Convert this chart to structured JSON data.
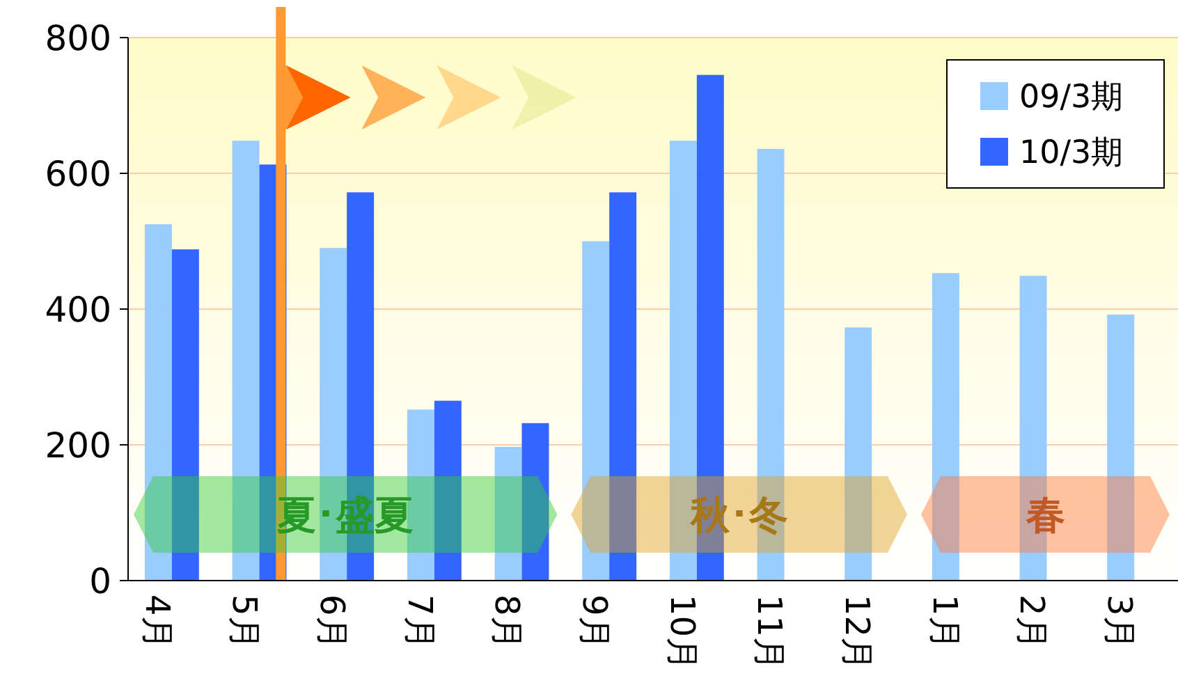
{
  "chart_data": {
    "type": "bar",
    "categories": [
      "4月",
      "5月",
      "6月",
      "7月",
      "8月",
      "9月",
      "10月",
      "11月",
      "12月",
      "1月",
      "2月",
      "3月"
    ],
    "series": [
      {
        "name": "09/3期",
        "color": "#99ccff",
        "values": [
          525,
          648,
          490,
          252,
          197,
          500,
          648,
          636,
          373,
          453,
          449,
          392
        ]
      },
      {
        "name": "10/3期",
        "color": "#3366ff",
        "values": [
          488,
          613,
          572,
          265,
          232,
          572,
          745,
          null,
          null,
          null,
          null,
          null
        ]
      }
    ],
    "ylim": [
      0,
      800
    ],
    "yticks": [
      0,
      200,
      400,
      600,
      800
    ],
    "grid": "y",
    "legend": "top right",
    "bands": [
      {
        "axis": "x",
        "from": "4月",
        "to": "8月",
        "label": "夏･盛夏",
        "color": "#33cc33"
      },
      {
        "axis": "x",
        "from": "9月",
        "to": "12月",
        "label": "秋･冬",
        "color": "#e0a020"
      },
      {
        "axis": "x",
        "from": "1月",
        "to": "3月",
        "label": "春",
        "color": "#ff7733"
      }
    ]
  }
}
